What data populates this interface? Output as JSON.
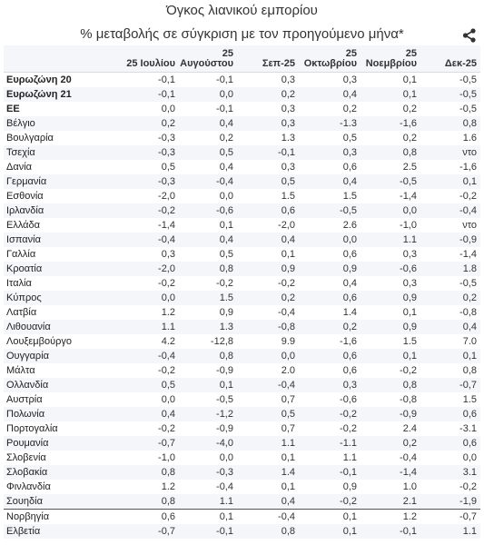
{
  "chart_data": {
    "type": "table",
    "title": "Όγκος λιανικού εμπορίου",
    "subtitle": "% μεταβολής σε σύγκριση με τον προηγούμενο μήνα*",
    "columns": [
      "25 Ιουλίου",
      "25\nΑυγούστου",
      "Σεπ-25",
      "25\nΟκτωβρίου",
      "25\nΝοεμβρίου",
      "Δεκ-25"
    ],
    "rows": [
      {
        "name": "Ευρωζώνη 20",
        "bold": true,
        "values": [
          "-0,1",
          "-0,1",
          "0,3",
          "0,3",
          "0,1",
          "-0,5"
        ]
      },
      {
        "name": "Ευρωζώνη 21",
        "bold": true,
        "values": [
          "-0,1",
          "0,0",
          "0,2",
          "0,4",
          "0,1",
          "-0,5"
        ]
      },
      {
        "name": "ΕΕ",
        "bold": true,
        "values": [
          "0,0",
          "-0,1",
          "0,3",
          "0,2",
          "0,2",
          "-0,5"
        ]
      },
      {
        "name": "Βέλγιο",
        "values": [
          "0,2",
          "0,4",
          "0,3",
          "-1.3",
          "-1,6",
          "0,8"
        ]
      },
      {
        "name": "Βουλγαρία",
        "values": [
          "-0,3",
          "0,2",
          "1.3",
          "0,5",
          "0,2",
          "1.6"
        ]
      },
      {
        "name": "Τσεχία",
        "values": [
          "-0,3",
          "0,5",
          "-0,1",
          "0,3",
          "0,8",
          "ντο"
        ]
      },
      {
        "name": "Δανία",
        "values": [
          "0,5",
          "0,4",
          "0,3",
          "0,6",
          "2.5",
          "-1,6"
        ]
      },
      {
        "name": "Γερμανία",
        "values": [
          "-0,3",
          "-0,4",
          "0,5",
          "0,4",
          "-0,5",
          "0,1"
        ]
      },
      {
        "name": "Εσθονία",
        "values": [
          "-2,0",
          "0,0",
          "1.5",
          "1.5",
          "-1,4",
          "-0,2"
        ]
      },
      {
        "name": "Ιρλανδία",
        "values": [
          "-0,2",
          "-0,6",
          "0,6",
          "-0,5",
          "0,0",
          "-0,4"
        ]
      },
      {
        "name": "Ελλάδα",
        "values": [
          "-1,4",
          "0,1",
          "-2,0",
          "2.6",
          "-1,0",
          "ντο"
        ]
      },
      {
        "name": "Ισπανία",
        "values": [
          "-0,4",
          "0,4",
          "0,4",
          "0,0",
          "1.1",
          "-0,9"
        ]
      },
      {
        "name": "Γαλλία",
        "values": [
          "0,3",
          "0,5",
          "0,1",
          "0,6",
          "0,3",
          "-1,4"
        ]
      },
      {
        "name": "Κροατία",
        "values": [
          "-2,0",
          "0,8",
          "0,9",
          "0,9",
          "-0,6",
          "1.8"
        ]
      },
      {
        "name": "Ιταλία",
        "values": [
          "-0,2",
          "-0,2",
          "-0,2",
          "0,4",
          "0,3",
          "-0,5"
        ]
      },
      {
        "name": "Κύπρος",
        "values": [
          "0,0",
          "1.5",
          "0,2",
          "0,6",
          "0,9",
          "0,2"
        ]
      },
      {
        "name": "Λατβία",
        "values": [
          "1.2",
          "0,9",
          "-0,4",
          "1.4",
          "0,1",
          "-0,8"
        ]
      },
      {
        "name": "Λιθουανία",
        "values": [
          "1.1",
          "1.3",
          "-0,8",
          "0,2",
          "0,9",
          "0,4"
        ]
      },
      {
        "name": "Λουξεμβούργο",
        "values": [
          "4.2",
          "-12,8",
          "9.9",
          "-1,6",
          "1.5",
          "7.0"
        ]
      },
      {
        "name": "Ουγγαρία",
        "values": [
          "-0,4",
          "0,8",
          "0,0",
          "0,6",
          "0,1",
          "0,1"
        ]
      },
      {
        "name": "Μάλτα",
        "values": [
          "-0,2",
          "-0,9",
          "2.0",
          "0,6",
          "-0,2",
          "0,8"
        ]
      },
      {
        "name": "Ολλανδία",
        "values": [
          "0,5",
          "0,1",
          "-0,4",
          "0,3",
          "0,8",
          "-0,7"
        ]
      },
      {
        "name": "Αυστρία",
        "values": [
          "0,0",
          "-0,5",
          "0,7",
          "-0,6",
          "-0,8",
          "1.5"
        ]
      },
      {
        "name": "Πολωνία",
        "values": [
          "0,4",
          "-1,2",
          "0,5",
          "-0,2",
          "-0,9",
          "0,6"
        ]
      },
      {
        "name": "Πορτογαλία",
        "values": [
          "-0,2",
          "-0,9",
          "0,7",
          "-0,2",
          "2.4",
          "-3.1"
        ]
      },
      {
        "name": "Ρουμανία",
        "values": [
          "-0,7",
          "-4,0",
          "1.1",
          "-1.1",
          "0,2",
          "0,6"
        ]
      },
      {
        "name": "Σλοβενία",
        "values": [
          "-1,0",
          "0,0",
          "0,1",
          "1.1",
          "-0,4",
          "0,0"
        ]
      },
      {
        "name": "Σλοβακία",
        "values": [
          "0,8",
          "-0,3",
          "1.4",
          "-0,1",
          "-1,4",
          "3.1"
        ]
      },
      {
        "name": "Φινλανδία",
        "values": [
          "1.2",
          "-0,4",
          "0,1",
          "0,9",
          "1.0",
          "-0,2"
        ]
      },
      {
        "name": "Σουηδία",
        "values": [
          "0,8",
          "1.1",
          "0,4",
          "-0,2",
          "2.1",
          "-1,9"
        ]
      },
      {
        "name": "Νορβηγία",
        "sep": true,
        "values": [
          "0,6",
          "0,1",
          "-0,4",
          "0,1",
          "1.2",
          "-0,7"
        ]
      },
      {
        "name": "Ελβετία",
        "values": [
          "-0,7",
          "-0,1",
          "0,8",
          "0,1",
          "-0,1",
          "1.1"
        ]
      }
    ]
  },
  "share_icon": "share-icon"
}
